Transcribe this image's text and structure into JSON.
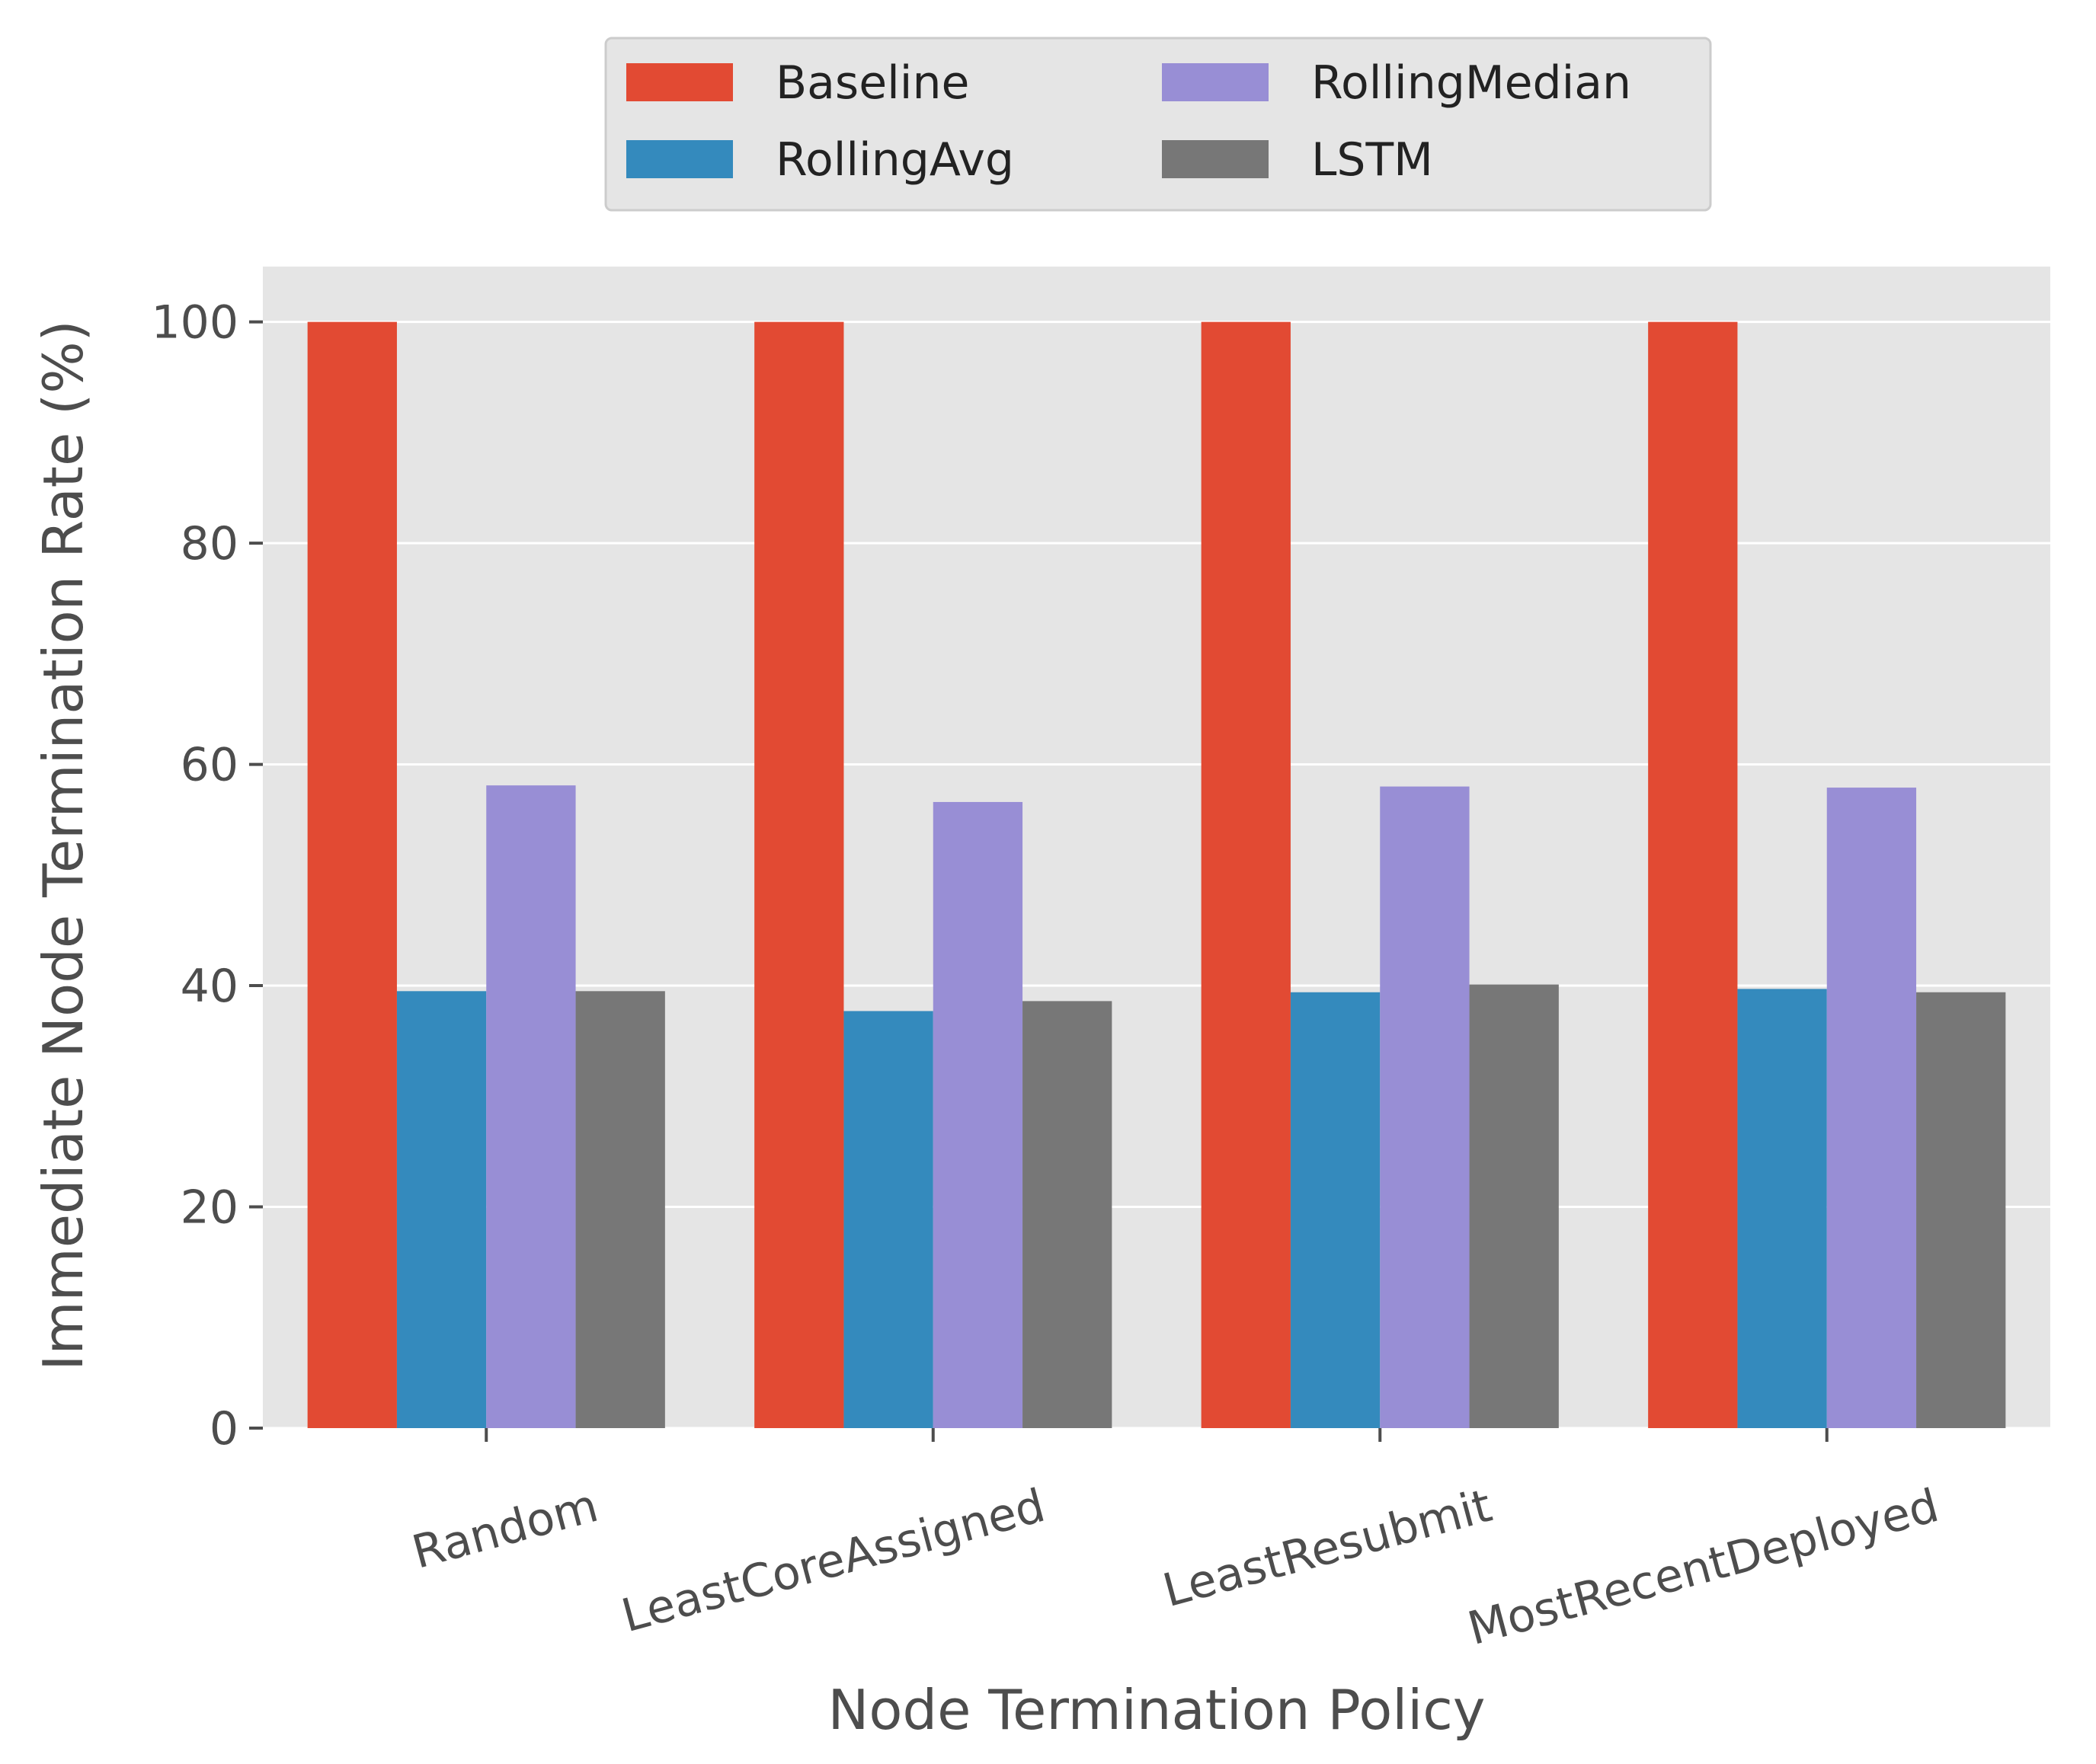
{
  "chart_data": {
    "type": "bar",
    "categories": [
      "Random",
      "LeastCoreAssigned",
      "LeastResubmit",
      "MostRecentDeployed"
    ],
    "series": [
      {
        "name": "Baseline",
        "color": "#E24A33",
        "values": [
          100,
          100,
          100,
          100
        ]
      },
      {
        "name": "RollingAvg",
        "color": "#348ABD",
        "values": [
          39.5,
          37.7,
          39.4,
          39.7
        ]
      },
      {
        "name": "RollingMedian",
        "color": "#988ED5",
        "values": [
          58.1,
          56.6,
          58.0,
          57.9
        ]
      },
      {
        "name": "LSTM",
        "color": "#777777",
        "values": [
          39.5,
          38.6,
          40.1,
          39.4
        ]
      }
    ],
    "xlabel": "Node Termination Policy",
    "ylabel": "Immediate Node Termination Rate (%)",
    "ylim": [
      0,
      105
    ],
    "yticks": [
      0,
      20,
      40,
      60,
      80,
      100
    ],
    "grid": true,
    "legend_position": "top-center, outside",
    "style": {
      "plot_background": "#E5E5E5",
      "grid_color": "#FFFFFF",
      "text_color": "#4D4D4D"
    }
  }
}
